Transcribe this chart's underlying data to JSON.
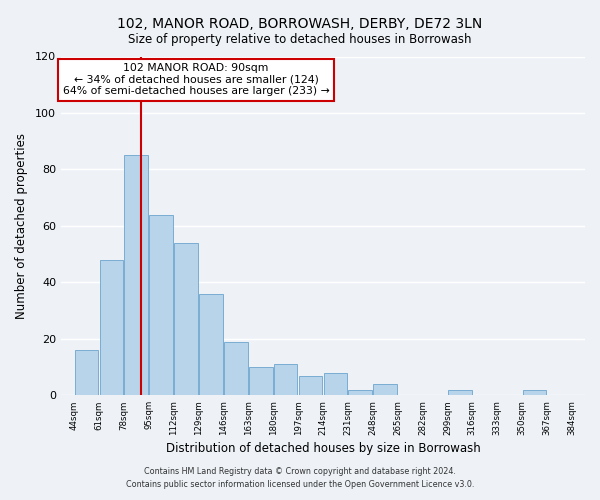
{
  "title": "102, MANOR ROAD, BORROWASH, DERBY, DE72 3LN",
  "subtitle": "Size of property relative to detached houses in Borrowash",
  "xlabel": "Distribution of detached houses by size in Borrowash",
  "ylabel": "Number of detached properties",
  "bar_color": "#b8d4eb",
  "bar_edge_color": "#7aadd4",
  "background_color": "#eef2f7",
  "grid_color": "white",
  "vline_x": 90,
  "vline_color": "#cc0000",
  "annotation_title": "102 MANOR ROAD: 90sqm",
  "annotation_line1": "← 34% of detached houses are smaller (124)",
  "annotation_line2": "64% of semi-detached houses are larger (233) →",
  "annotation_box_color": "white",
  "annotation_box_edge": "#cc0000",
  "bins_left": [
    44,
    61,
    78,
    95,
    112,
    129,
    146,
    163,
    180,
    197,
    214,
    231,
    248,
    265,
    282,
    299,
    316,
    333,
    350,
    367
  ],
  "bin_width": 17,
  "bar_heights": [
    16,
    48,
    85,
    64,
    54,
    36,
    19,
    10,
    11,
    7,
    8,
    2,
    4,
    0,
    0,
    2,
    0,
    0,
    2,
    0
  ],
  "xlim_left": 35,
  "xlim_right": 393,
  "ylim_top": 120,
  "yticks": [
    0,
    20,
    40,
    60,
    80,
    100,
    120
  ],
  "tick_labels": [
    "44sqm",
    "61sqm",
    "78sqm",
    "95sqm",
    "112sqm",
    "129sqm",
    "146sqm",
    "163sqm",
    "180sqm",
    "197sqm",
    "214sqm",
    "231sqm",
    "248sqm",
    "265sqm",
    "282sqm",
    "299sqm",
    "316sqm",
    "333sqm",
    "350sqm",
    "367sqm",
    "384sqm"
  ],
  "tick_positions": [
    44,
    61,
    78,
    95,
    112,
    129,
    146,
    163,
    180,
    197,
    214,
    231,
    248,
    265,
    282,
    299,
    316,
    333,
    350,
    367,
    384
  ],
  "footer_line1": "Contains HM Land Registry data © Crown copyright and database right 2024.",
  "footer_line2": "Contains public sector information licensed under the Open Government Licence v3.0."
}
